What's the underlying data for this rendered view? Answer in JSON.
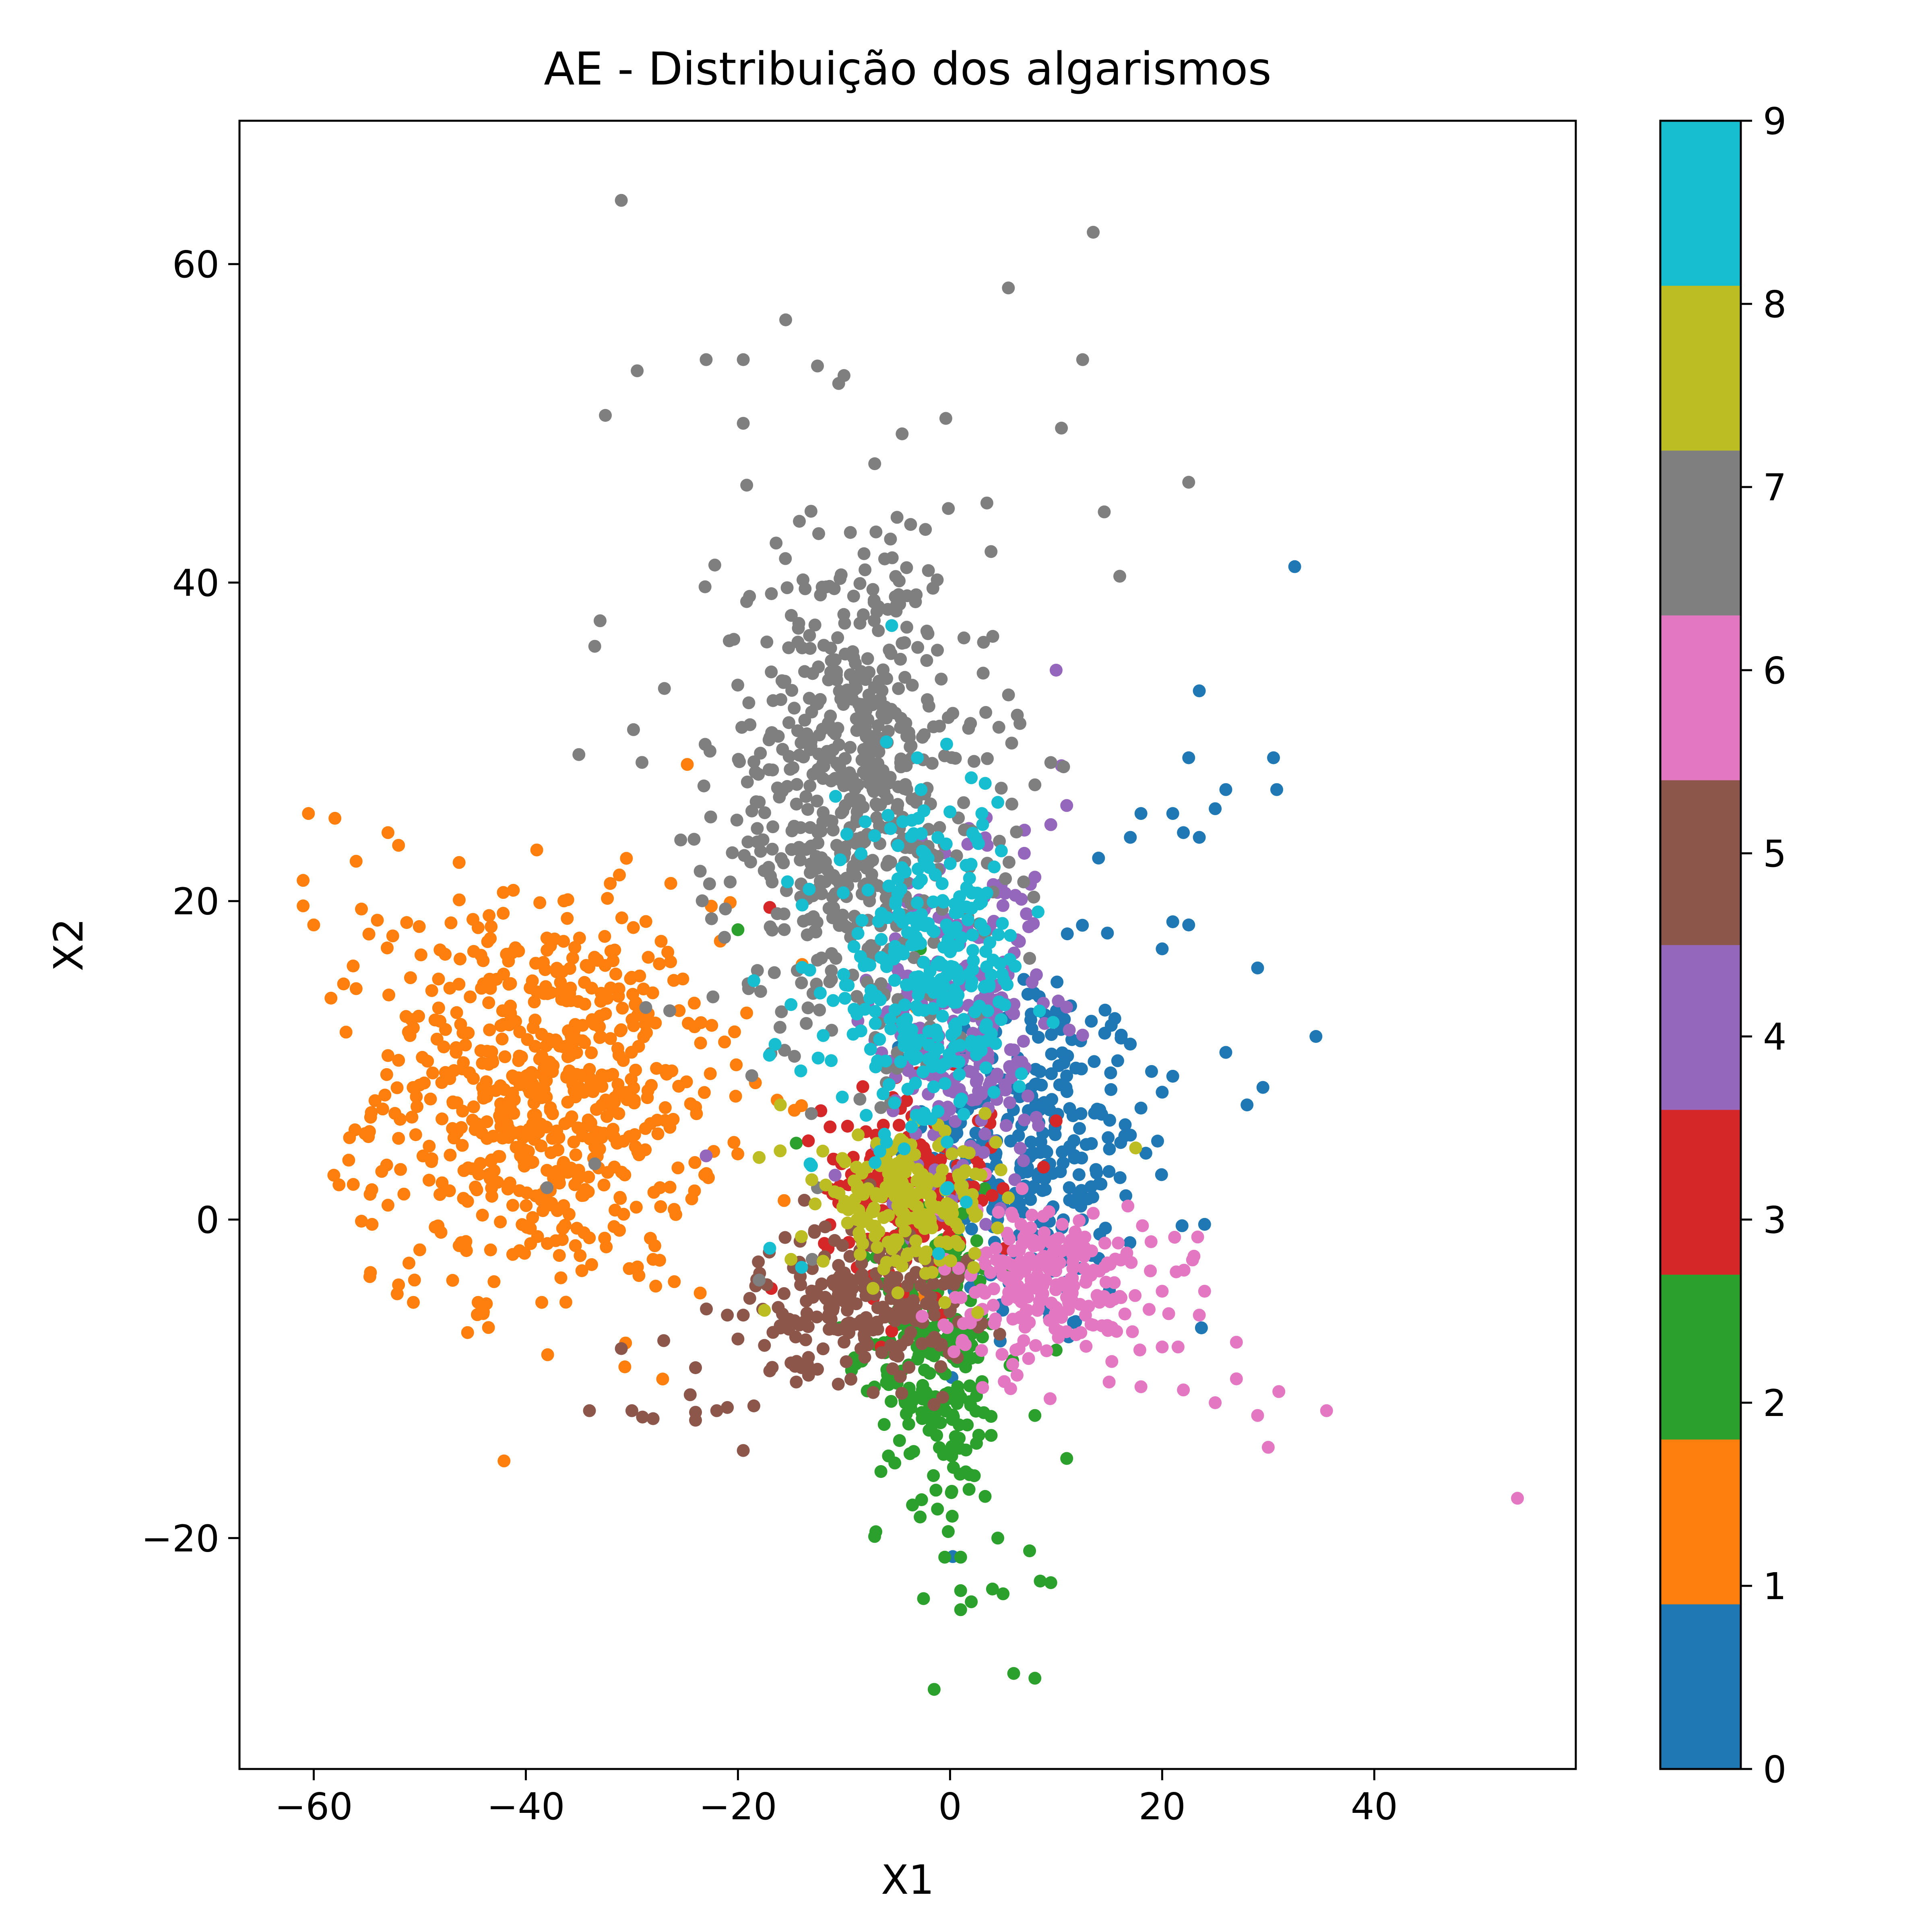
{
  "chart_data": {
    "type": "scatter",
    "title": "AE - Distribuição dos algarismos",
    "xlabel": "X1",
    "ylabel": "X2",
    "xlim": [
      -67,
      59
    ],
    "ylim": [
      -34.5,
      69
    ],
    "xticks": [
      {
        "value": -60,
        "label": "−60"
      },
      {
        "value": -40,
        "label": "−40"
      },
      {
        "value": -20,
        "label": "−20"
      },
      {
        "value": 0,
        "label": "0"
      },
      {
        "value": 20,
        "label": "20"
      },
      {
        "value": 40,
        "label": "40"
      }
    ],
    "yticks": [
      {
        "value": -20,
        "label": "−20"
      },
      {
        "value": 0,
        "label": "0"
      },
      {
        "value": 20,
        "label": "20"
      },
      {
        "value": 40,
        "label": "40"
      },
      {
        "value": 60,
        "label": "60"
      }
    ],
    "grid": false,
    "colorbar": {
      "range": [
        0,
        9
      ],
      "ticks": [
        "0",
        "1",
        "2",
        "3",
        "4",
        "5",
        "6",
        "7",
        "8",
        "9"
      ],
      "colors": [
        "#1f77b4",
        "#ff7f0e",
        "#2ca02c",
        "#d62728",
        "#9467bd",
        "#8c564b",
        "#e377c2",
        "#7f7f7f",
        "#bcbd22",
        "#17becf"
      ]
    },
    "series": [
      {
        "label": "0",
        "color": "#1f77b4",
        "center": [
          8,
          4
        ],
        "spread": [
          5,
          6
        ],
        "n": 300,
        "points": [
          [
            32.5,
            41
          ],
          [
            34.5,
            11.5
          ],
          [
            28,
            7.2
          ],
          [
            29.5,
            8.3
          ],
          [
            29,
            15.8
          ],
          [
            26,
            10.5
          ],
          [
            24,
            -0.3
          ],
          [
            23.7,
            -6.8
          ],
          [
            30.5,
            29
          ],
          [
            30.8,
            27
          ],
          [
            26,
            27
          ],
          [
            25,
            25.8
          ],
          [
            23.5,
            33.2
          ],
          [
            22.5,
            29
          ],
          [
            21,
            25.5
          ],
          [
            22,
            24.3
          ],
          [
            23.5,
            24
          ],
          [
            17,
            24
          ],
          [
            18,
            25.5
          ],
          [
            14,
            22.7
          ],
          [
            20,
            17
          ],
          [
            21,
            18.7
          ],
          [
            22.5,
            18.5
          ],
          [
            21,
            9
          ],
          [
            20,
            8
          ],
          [
            19,
            9.3
          ],
          [
            18,
            7
          ]
        ]
      },
      {
        "label": "1",
        "color": "#ff7f0e",
        "center": [
          -38,
          8
        ],
        "spread": [
          8,
          6
        ],
        "n": 650,
        "points": [
          [
            -60.5,
            25.5
          ],
          [
            -58,
            25.2
          ],
          [
            -61,
            21.3
          ],
          [
            -61,
            19.7
          ],
          [
            -60,
            18.5
          ],
          [
            -53,
            24.3
          ],
          [
            -52,
            23.5
          ],
          [
            -56,
            22.5
          ],
          [
            -55.5,
            19.5
          ],
          [
            -54,
            18.8
          ],
          [
            -56,
            14.5
          ],
          [
            -52,
            10
          ],
          [
            -53,
            10.3
          ],
          [
            -52,
            5.1
          ],
          [
            -51.5,
            1.6
          ],
          [
            -50,
            -1.9
          ],
          [
            -55.5,
            -0.1
          ],
          [
            -54.5,
            -0.3
          ],
          [
            -52,
            -4.1
          ],
          [
            -50.5,
            -3.8
          ],
          [
            -48,
            -0.8
          ],
          [
            -43,
            -3.9
          ],
          [
            -44.5,
            -5.2
          ],
          [
            -44,
            -5.8
          ],
          [
            -38.5,
            -5.2
          ],
          [
            -26,
            -3.9
          ],
          [
            -28,
            -2.5
          ],
          [
            -3.2,
            13.3
          ],
          [
            -2.5,
            -4.8
          ],
          [
            -16.3,
            7.5
          ]
        ]
      },
      {
        "label": "2",
        "color": "#2ca02c",
        "center": [
          -1,
          -8
        ],
        "spread": [
          3,
          5
        ],
        "n": 260,
        "points": [
          [
            -1.5,
            -29.5
          ],
          [
            6,
            -28.5
          ],
          [
            8,
            -28.8
          ],
          [
            1,
            -24.5
          ],
          [
            -2.5,
            -23.8
          ],
          [
            1,
            -23.3
          ],
          [
            2,
            -24
          ],
          [
            4,
            -23.2
          ],
          [
            5,
            -23.5
          ],
          [
            9.5,
            -22.8
          ],
          [
            8.5,
            -22.7
          ],
          [
            -0.5,
            -21.2
          ],
          [
            1,
            -21.2
          ],
          [
            7.5,
            -20.8
          ],
          [
            -7,
            -19.6
          ],
          [
            4.5,
            -20
          ],
          [
            11,
            -15
          ],
          [
            8,
            -12.3
          ],
          [
            10,
            -8.2
          ],
          [
            -20,
            18.2
          ],
          [
            -2.8,
            17
          ],
          [
            -14.5,
            4.8
          ],
          [
            5.5,
            -3.5
          ]
        ]
      },
      {
        "label": "3",
        "color": "#d62728",
        "center": [
          -4,
          2
        ],
        "spread": [
          4,
          3
        ],
        "n": 160,
        "points": [
          [
            -17,
            19.6
          ],
          [
            10,
            6.2
          ],
          [
            -2,
            -3.2
          ],
          [
            -5.5,
            -7
          ],
          [
            -6.5,
            -8
          ],
          [
            3,
            1.2
          ],
          [
            -11,
            3.8
          ],
          [
            -7,
            5.3
          ]
        ]
      },
      {
        "label": "4",
        "color": "#9467bd",
        "center": [
          1,
          12
        ],
        "spread": [
          4,
          5
        ],
        "n": 300,
        "points": [
          [
            10,
            34.5
          ],
          [
            10.5,
            28.5
          ],
          [
            11,
            26
          ],
          [
            9.5,
            24.8
          ],
          [
            7,
            23
          ],
          [
            8,
            21.5
          ],
          [
            7.2,
            19.2
          ],
          [
            -23,
            4
          ],
          [
            3.5,
            23.5
          ],
          [
            -1,
            22
          ]
        ]
      },
      {
        "label": "5",
        "color": "#8c564b",
        "center": [
          -8,
          -5
        ],
        "spread": [
          5,
          2.5
        ],
        "n": 220,
        "points": [
          [
            -34,
            -12
          ],
          [
            -30,
            -12
          ],
          [
            -29,
            -12.4
          ],
          [
            -28,
            -12.5
          ],
          [
            -24,
            -12.1
          ],
          [
            -24,
            -12.6
          ],
          [
            -22,
            -12
          ],
          [
            -21,
            -11.8
          ],
          [
            -19.5,
            -14.5
          ],
          [
            -18.5,
            -11.7
          ],
          [
            -24.5,
            -11
          ],
          [
            -31,
            -8.1
          ],
          [
            -27,
            -7.6
          ],
          [
            -24,
            -9.3
          ],
          [
            -21,
            -6
          ],
          [
            -20,
            -7.5
          ],
          [
            -19.5,
            -6
          ],
          [
            -17.5,
            -7.9
          ],
          [
            -17,
            -9.5
          ],
          [
            -15,
            -9
          ],
          [
            -14.5,
            -10.2
          ],
          [
            -14,
            -9.3
          ],
          [
            -12.5,
            -9.4
          ]
        ]
      },
      {
        "label": "6",
        "color": "#e377c2",
        "center": [
          9,
          -4
        ],
        "spread": [
          5,
          2.5
        ],
        "n": 240,
        "points": [
          [
            53.5,
            -17.5
          ],
          [
            35.5,
            -12
          ],
          [
            31,
            -10.8
          ],
          [
            29,
            -12.3
          ],
          [
            30,
            -14.3
          ],
          [
            27,
            -10
          ],
          [
            25,
            -11.5
          ],
          [
            22,
            -10.7
          ],
          [
            18,
            -10.5
          ],
          [
            15,
            -10.2
          ],
          [
            20,
            -8
          ],
          [
            27,
            -7.7
          ],
          [
            23.5,
            -6
          ],
          [
            24,
            -4.5
          ],
          [
            23,
            -2.3
          ],
          [
            20,
            -4.5
          ],
          [
            21.5,
            -8
          ]
        ]
      },
      {
        "label": "7",
        "color": "#7f7f7f",
        "center": [
          -9,
          27
        ],
        "spread": [
          6.5,
          8
        ],
        "n": 620,
        "points": [
          [
            -31,
            64
          ],
          [
            13.5,
            62
          ],
          [
            5.5,
            58.5
          ],
          [
            -15.5,
            56.5
          ],
          [
            12.5,
            54
          ],
          [
            -23,
            54
          ],
          [
            -19.5,
            54
          ],
          [
            -29.5,
            53.3
          ],
          [
            -12.5,
            53.6
          ],
          [
            -10,
            53
          ],
          [
            -10.5,
            52.5
          ],
          [
            -32.5,
            50.5
          ],
          [
            -19.5,
            50
          ],
          [
            10.5,
            49.7
          ],
          [
            22.5,
            46.3
          ],
          [
            16,
            40.4
          ],
          [
            -33,
            37.6
          ],
          [
            -33.5,
            36
          ],
          [
            -35,
            29.2
          ],
          [
            -19,
            14.5
          ],
          [
            -5,
            9.5
          ],
          [
            9.5,
            28.7
          ],
          [
            8,
            27.3
          ],
          [
            -12.5,
            2
          ],
          [
            -13,
            -2.5
          ],
          [
            -18,
            -3.8
          ],
          [
            -38,
            2
          ],
          [
            -33.5,
            3.5
          ]
        ]
      },
      {
        "label": "8",
        "color": "#bcbd22",
        "center": [
          -4,
          1
        ],
        "spread": [
          4,
          2
        ],
        "n": 200,
        "points": [
          [
            -18,
            3.9
          ],
          [
            -17.5,
            -5.7
          ],
          [
            -15,
            -2.5
          ],
          [
            -16,
            7.2
          ],
          [
            -12,
            4.3
          ],
          [
            17.5,
            4.5
          ]
        ]
      },
      {
        "label": "9",
        "color": "#17becf",
        "center": [
          -2,
          15
        ],
        "spread": [
          4.5,
          5
        ],
        "n": 320,
        "points": [
          [
            -5.5,
            37.3
          ],
          [
            4.5,
            26.2
          ],
          [
            3,
            25.5
          ],
          [
            -3,
            25.2
          ],
          [
            -16.5,
            11
          ],
          [
            -18.5,
            15
          ],
          [
            -15,
            13.5
          ],
          [
            -17,
            -1.8
          ],
          [
            -14,
            -3
          ],
          [
            -13.2,
            3.5
          ]
        ]
      }
    ]
  }
}
